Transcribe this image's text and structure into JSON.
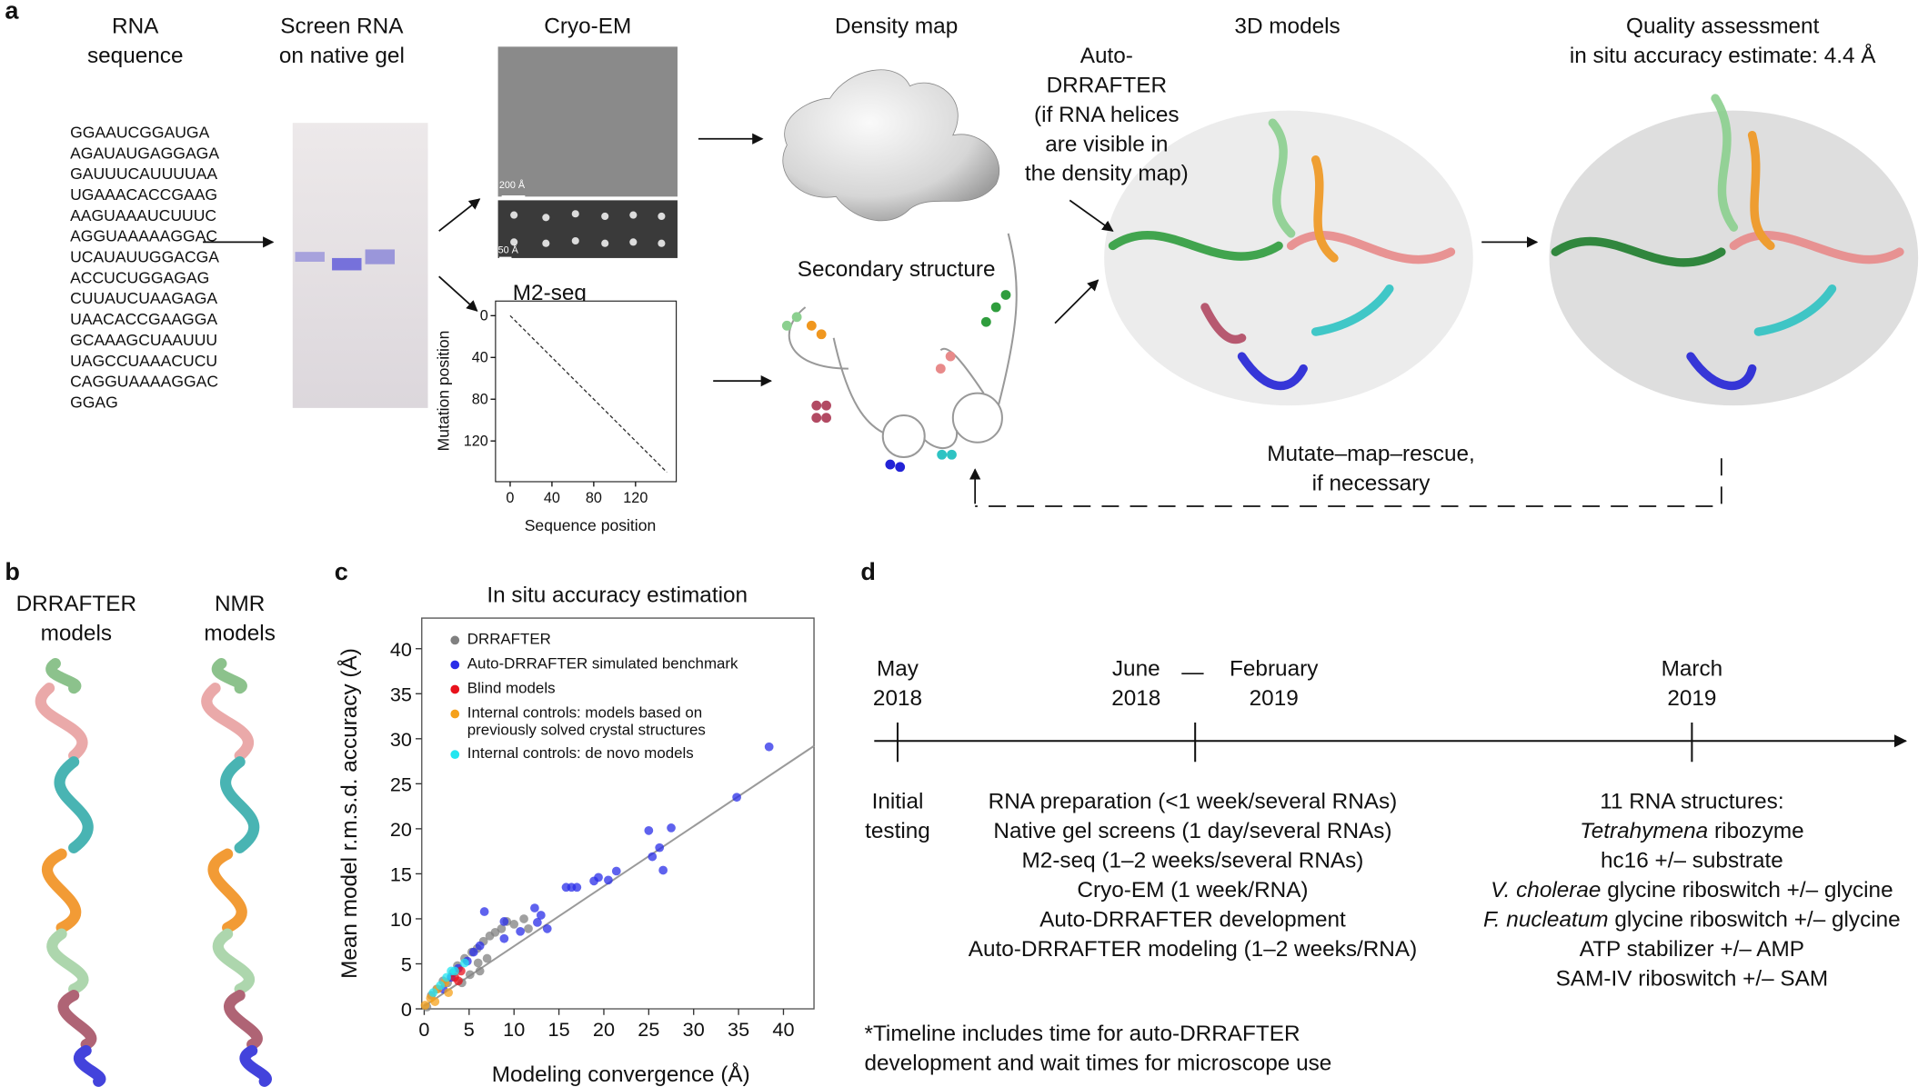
{
  "panel_a": {
    "label": "a",
    "sequence_title": [
      "RNA",
      "sequence"
    ],
    "sequence": [
      "GGAAUCGGAUGA",
      "AGAUAUGAGGAGA",
      "GAUUUCAUUUUAA",
      "UGAAACACCGAAG",
      "AAGUAAAUCUUUC",
      "AGGUAAAAAGGAC",
      "UCAUAUUGGACGA",
      "ACCUCUGGAGAG",
      "CUUAUCUAAGAGA",
      "UAACACCGAAGGA",
      "GCAAAGCUAAUUU",
      "UAGCCUAAACUCU",
      "CAGGUAAAAGGAC",
      "GGAG"
    ],
    "gel_title": [
      "Screen RNA",
      "on native gel"
    ],
    "cryo_em": {
      "title": "Cryo-EM",
      "scale_bars": [
        "200 Å",
        "50 Å"
      ]
    },
    "m2seq": {
      "title": "M2-seq",
      "xlabel": "Sequence position",
      "ylabel": "Mutation position",
      "xlim": [
        -14,
        159
      ],
      "ylim": [
        -14,
        159
      ],
      "xticks": [
        0,
        40,
        80,
        120
      ],
      "yticks": [
        0,
        40,
        80,
        120
      ]
    },
    "density_map": "Density map",
    "secondary_structure": "Secondary structure",
    "auto_drrafter": [
      "Auto-",
      "DRRAFTER",
      "(if RNA helices",
      "are visible in",
      "the density map)"
    ],
    "models_title": "3D models",
    "quality": [
      "Quality assessment",
      "in situ accuracy estimate: 4.4 Å"
    ],
    "rescue": [
      "Mutate–map–rescue,",
      "if necessary"
    ]
  },
  "panel_b": {
    "label": "b",
    "drrafter": [
      "DRRAFTER",
      "models"
    ],
    "nmr": [
      "NMR",
      "models"
    ]
  },
  "panel_c": {
    "label": "c"
  },
  "chart_data": {
    "type": "scatter",
    "title": "In situ accuracy estimation",
    "x_label": "Modeling convergence (Å)",
    "y_label": "Mean model r.m.s.d. accuracy (Å)",
    "xlim": [
      0,
      43.4
    ],
    "ylim": [
      0,
      43.4
    ],
    "xticks": [
      0,
      5,
      10,
      15,
      20,
      25,
      30,
      35,
      40
    ],
    "yticks": [
      0,
      5,
      10,
      15,
      20,
      25,
      30,
      35,
      40
    ],
    "series": [
      {
        "name": "DRRAFTER",
        "color": "#808080",
        "x": [
          0.3,
          0.8,
          1.4,
          2.1,
          2.6,
          3.2,
          3.7,
          4.5,
          5.3,
          5.9,
          6.6,
          7.3,
          7.9,
          8.6,
          9.2,
          10.0,
          11.1,
          11.6,
          7.0,
          6.0,
          5.1,
          4.2,
          6.2
        ],
        "values": [
          0.2,
          1.5,
          2.2,
          3.1,
          2.9,
          4.0,
          4.8,
          5.6,
          6.3,
          6.7,
          7.5,
          8.1,
          8.5,
          8.9,
          9.7,
          9.4,
          10.0,
          8.9,
          5.6,
          5.1,
          3.8,
          2.9,
          4.2
        ]
      },
      {
        "name": "Auto-DRRAFTER simulated benchmark",
        "color": "#2a2ee8",
        "x": [
          38.4,
          34.8,
          27.5,
          25.0,
          26.2,
          25.4,
          26.6,
          21.4,
          19.4,
          20.5,
          18.9,
          17.0,
          16.4,
          15.8,
          12.3,
          13.0,
          12.6,
          6.7,
          8.9,
          10.7,
          8.9,
          13.7,
          4.8,
          3.0,
          3.8,
          5.5,
          2.1,
          6.2
        ],
        "values": [
          29.1,
          23.5,
          20.1,
          19.8,
          17.9,
          16.9,
          15.4,
          15.3,
          14.6,
          14.3,
          14.2,
          13.5,
          13.5,
          13.5,
          11.2,
          10.4,
          9.6,
          10.8,
          9.7,
          8.6,
          7.8,
          8.9,
          5.3,
          3.5,
          4.5,
          6.3,
          2.2,
          7.0
        ]
      },
      {
        "name": "Blind models",
        "color": "#e8121c",
        "x": [
          3.4,
          4.1,
          3.8
        ],
        "values": [
          3.5,
          4.2,
          3.1
        ]
      },
      {
        "name": "Internal controls: models based on previously solved crystal structures",
        "color": "#f5a11b",
        "x": [
          0.1,
          0.7,
          1.5,
          2.3,
          1.2,
          2.7
        ],
        "values": [
          0.4,
          1.2,
          2.2,
          2.9,
          0.8,
          1.8
        ]
      },
      {
        "name": "Internal controls: de novo models",
        "color": "#22e6f0",
        "x": [
          1.0,
          1.8,
          2.5,
          3.4,
          4.5,
          3.0
        ],
        "values": [
          1.8,
          2.6,
          3.5,
          4.2,
          5.1,
          4.2
        ]
      }
    ],
    "trend_line": {
      "color": "#9a9a9a",
      "x": [
        0,
        43.4
      ],
      "values": [
        0.3,
        29.2
      ]
    }
  },
  "panel_d": {
    "label": "d",
    "dates": [
      [
        "May",
        "2018"
      ],
      [
        "June",
        "2018"
      ],
      [
        "February",
        "2019"
      ],
      [
        "March",
        "2019"
      ]
    ],
    "range_dash": "—",
    "activities": [
      [
        "Initial",
        "testing"
      ],
      [
        "RNA preparation (<1 week/several RNAs)",
        "Native gel screens (1 day/several RNAs)",
        "M2-seq (1–2 weeks/several RNAs)",
        "Cryo-EM (1 week/RNA)",
        "Auto-DRRAFTER development",
        "Auto-DRRAFTER modeling (1–2 weeks/RNA)"
      ],
      [
        "11 RNA structures:",
        {
          "italic": "Tetrahymena",
          "text": " ribozyme"
        },
        "hc16 +/– substrate",
        {
          "italic": "V. cholerae",
          "text": " glycine riboswitch +/– glycine"
        },
        {
          "italic": "F. nucleatum",
          "text": " glycine riboswitch +/– glycine"
        },
        "ATP stabilizer +/– AMP",
        "SAM-IV riboswitch +/– SAM"
      ]
    ],
    "footnote": [
      "*Timeline includes time for auto-DRRAFTER",
      "development and wait times for microscope use"
    ]
  }
}
